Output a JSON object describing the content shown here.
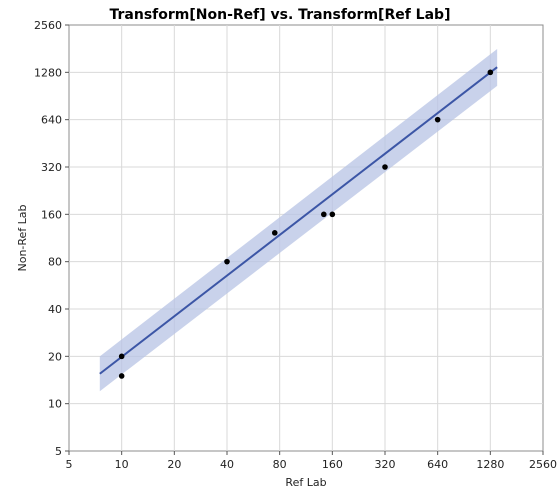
{
  "chart_data": {
    "type": "scatter",
    "title": "Transform[Non-Ref] vs. Transform[Ref Lab]",
    "xlabel": "Ref Lab",
    "ylabel": "Non-Ref Lab",
    "x_scale": "log2",
    "y_scale": "log2",
    "xlim": [
      5,
      2560
    ],
    "ylim": [
      5,
      2560
    ],
    "x_ticks": [
      5,
      10,
      20,
      40,
      80,
      160,
      320,
      640,
      1280,
      2560
    ],
    "y_ticks": [
      5,
      10,
      20,
      40,
      80,
      160,
      320,
      640,
      1280,
      2560
    ],
    "x_tick_labels": [
      "5",
      "10",
      "20",
      "40",
      "80",
      "160",
      "320",
      "640",
      "1280",
      "2560"
    ],
    "y_tick_labels": [
      "5",
      "10",
      "20",
      "40",
      "80",
      "160",
      "320",
      "640",
      "1280",
      "2560"
    ],
    "grid": true,
    "points": [
      {
        "x": 10,
        "y": 20
      },
      {
        "x": 10,
        "y": 15
      },
      {
        "x": 40,
        "y": 80
      },
      {
        "x": 75,
        "y": 122
      },
      {
        "x": 143,
        "y": 160
      },
      {
        "x": 160,
        "y": 160
      },
      {
        "x": 320,
        "y": 320
      },
      {
        "x": 640,
        "y": 640
      },
      {
        "x": 1280,
        "y": 1280
      }
    ],
    "fit_line": {
      "x_start": 7.5,
      "y_start": 15.5,
      "x_end": 1400,
      "y_end": 1380
    },
    "confidence_band": {
      "x": [
        7.5,
        1400
      ],
      "upper": [
        20,
        1800
      ],
      "lower": [
        12,
        1050
      ]
    },
    "colors": {
      "points": "#000000",
      "fit_line": "#3c56a6",
      "band": "#b7c3e4"
    }
  }
}
